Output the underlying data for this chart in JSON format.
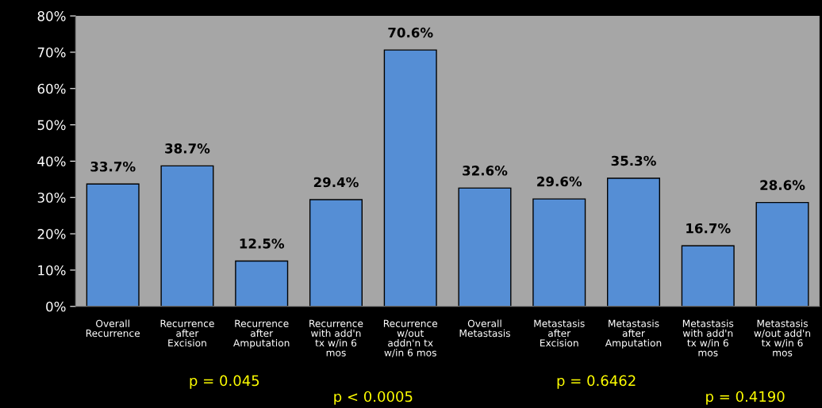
{
  "chart_data": {
    "type": "bar",
    "categories": [
      "Overall\nRecurrence",
      "Recurrence\nafter\nExcision",
      "Recurrence\nafter\nAmputation",
      "Recurrence\nwith add'n\ntx w/in 6\nmos",
      "Recurrence\nw/out\naddn'n tx\nw/in 6 mos",
      "Overall\nMetastasis",
      "Metastasis\nafter\nExcision",
      "Metastasis\nafter\nAmputation",
      "Metastasis\nwith add'n\ntx w/in 6\nmos",
      "Metastasis\nw/out add'n\ntx w/in 6\nmos"
    ],
    "values": [
      33.7,
      38.7,
      12.5,
      29.4,
      70.6,
      32.6,
      29.6,
      35.3,
      16.7,
      28.6
    ],
    "value_labels": [
      "33.7%",
      "38.7%",
      "12.5%",
      "29.4%",
      "70.6%",
      "32.6%",
      "29.6%",
      "35.3%",
      "16.7%",
      "28.6%"
    ],
    "color": "#558ed5",
    "ylim": [
      0,
      80
    ],
    "yticks": [
      {
        "value": 0,
        "label": "0%"
      },
      {
        "value": 10,
        "label": "10%"
      },
      {
        "value": 20,
        "label": "20%"
      },
      {
        "value": 30,
        "label": "30%"
      },
      {
        "value": 40,
        "label": "40%"
      },
      {
        "value": 50,
        "label": "50%"
      },
      {
        "value": 60,
        "label": "60%"
      },
      {
        "value": 70,
        "label": "70%"
      },
      {
        "value": 80,
        "label": "80%"
      }
    ],
    "annotations": [
      "p = 0.045",
      "p < 0.0005",
      "p = 0.6462",
      "p = 0.4190"
    ]
  }
}
